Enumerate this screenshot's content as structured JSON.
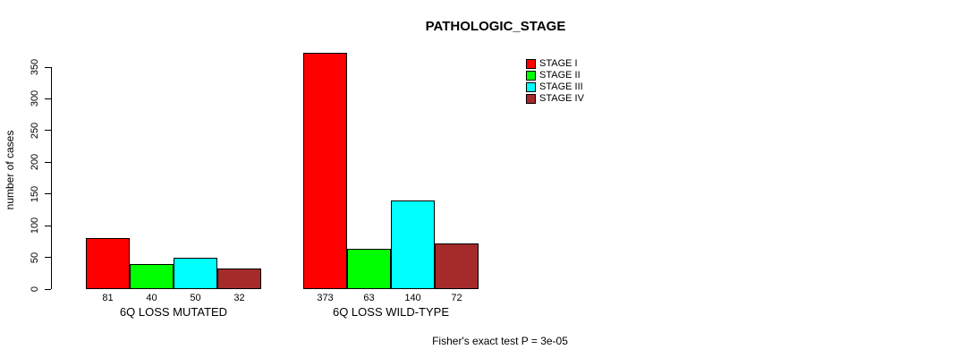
{
  "chart_data": {
    "type": "bar",
    "grouped": true,
    "title": "PATHOLOGIC_STAGE",
    "xlabel": "",
    "ylabel": "number of cases",
    "ylim": [
      0,
      350
    ],
    "yticks": [
      0,
      50,
      100,
      150,
      200,
      250,
      300,
      350
    ],
    "grid": false,
    "legend_position": "top-right",
    "categories": [
      "6Q LOSS MUTATED",
      "6Q LOSS WILD-TYPE"
    ],
    "series": [
      {
        "name": "STAGE I",
        "color": "#ff0000",
        "values": [
          81,
          373
        ]
      },
      {
        "name": "STAGE II",
        "color": "#00ff00",
        "values": [
          40,
          63
        ]
      },
      {
        "name": "STAGE III",
        "color": "#00ffff",
        "values": [
          50,
          140
        ]
      },
      {
        "name": "STAGE IV",
        "color": "#a52a2a",
        "values": [
          32,
          72
        ]
      }
    ],
    "bar_value_labels": [
      [
        81,
        40,
        50,
        32
      ],
      [
        373,
        63,
        140,
        72
      ]
    ],
    "annotation": "Fisher's exact test P = 3e-05"
  }
}
